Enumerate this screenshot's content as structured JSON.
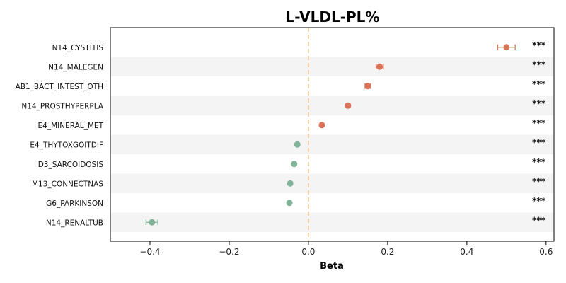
{
  "chart_data": {
    "type": "scatter",
    "title": "L-VLDL-PL%",
    "xlabel": "Beta",
    "xlim": [
      -0.5,
      0.62
    ],
    "xticks": [
      -0.4,
      -0.2,
      0.0,
      0.2,
      0.4,
      0.6
    ],
    "xtick_labels": [
      "−0.4",
      "−0.2",
      "0.0",
      "0.2",
      "0.4",
      "0.6"
    ],
    "reference_line": 0,
    "grid": false,
    "colors": {
      "positive": "#d9735a",
      "negative": "#82b49a",
      "reference_line": "#f2c38a",
      "band": "#f4f4f4"
    },
    "points": [
      {
        "label": "N14_CYSTITIS",
        "beta": 0.5,
        "ci_low": 0.478,
        "ci_high": 0.522,
        "sig": "***"
      },
      {
        "label": "N14_MALEGEN",
        "beta": 0.18,
        "ci_low": 0.171,
        "ci_high": 0.189,
        "sig": "***"
      },
      {
        "label": "AB1_BACT_INTEST_OTH",
        "beta": 0.15,
        "ci_low": 0.143,
        "ci_high": 0.157,
        "sig": "***"
      },
      {
        "label": "N14_PROSTHYPERPLA",
        "beta": 0.1,
        "ci_low": 0.096,
        "ci_high": 0.104,
        "sig": "***"
      },
      {
        "label": "E4_MINERAL_MET",
        "beta": 0.034,
        "ci_low": 0.031,
        "ci_high": 0.037,
        "sig": "***"
      },
      {
        "label": "E4_THYTOXGOITDIF",
        "beta": -0.028,
        "ci_low": -0.031,
        "ci_high": -0.025,
        "sig": "***"
      },
      {
        "label": "D3_SARCOIDOSIS",
        "beta": -0.036,
        "ci_low": -0.039,
        "ci_high": -0.033,
        "sig": "***"
      },
      {
        "label": "M13_CONNECTNAS",
        "beta": -0.046,
        "ci_low": -0.049,
        "ci_high": -0.043,
        "sig": "***"
      },
      {
        "label": "G6_PARKINSON",
        "beta": -0.048,
        "ci_low": -0.051,
        "ci_high": -0.045,
        "sig": "***"
      },
      {
        "label": "N14_RENALTUB",
        "beta": -0.395,
        "ci_low": -0.41,
        "ci_high": -0.38,
        "sig": "***"
      }
    ]
  }
}
